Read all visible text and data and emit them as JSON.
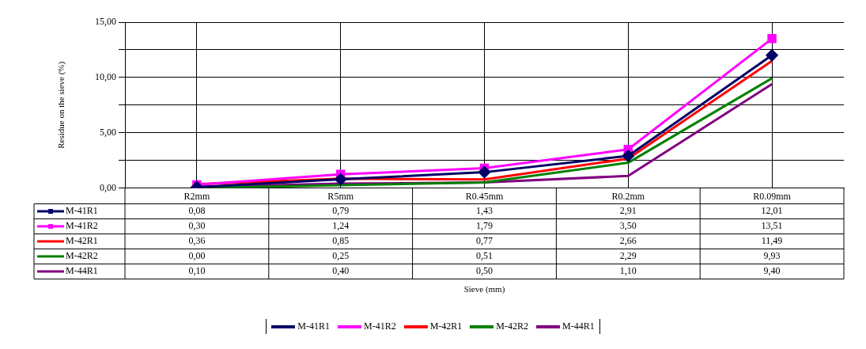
{
  "chart_data": {
    "type": "line",
    "annotations": [
      "Sieve (mm)"
    ],
    "ylabel": "Residue on the sieve (%)",
    "categories": [
      "R2mm",
      "R5mm",
      "R0.45mm",
      "R0.2mm",
      "R0.09mm"
    ],
    "ylim": [
      0,
      15
    ],
    "yticks": [
      {
        "value": 0,
        "label": "0,00"
      },
      {
        "value": 2.5,
        "label": null
      },
      {
        "value": 5,
        "label": "5,00"
      },
      {
        "value": 7.5,
        "label": null
      },
      {
        "value": 10,
        "label": "10,00"
      },
      {
        "value": 12.5,
        "label": null
      },
      {
        "value": 15,
        "label": "15,00"
      }
    ],
    "grid": true,
    "legend": "bottom",
    "line_style": "solid",
    "series": [
      {
        "name": "M-41R1",
        "color": "#000066",
        "marker": "diamond",
        "values": [
          0.08,
          0.79,
          1.43,
          2.91,
          12.01
        ],
        "value_labels": [
          "0,08",
          "0,79",
          "1,43",
          "2,91",
          "12,01"
        ]
      },
      {
        "name": "M-41R2",
        "color": "#ff00ff",
        "marker": "square",
        "values": [
          0.3,
          1.24,
          1.79,
          3.5,
          13.51
        ],
        "value_labels": [
          "0,30",
          "1,24",
          "1,79",
          "3,50",
          "13,51"
        ]
      },
      {
        "name": "M-42R1",
        "color": "#ff0000",
        "marker": "none",
        "values": [
          0.36,
          0.85,
          0.77,
          2.66,
          11.49
        ],
        "value_labels": [
          "0,36",
          "0,85",
          "0,77",
          "2,66",
          "11,49"
        ]
      },
      {
        "name": "M-42R2",
        "color": "#008000",
        "marker": "none",
        "values": [
          0.0,
          0.25,
          0.51,
          2.29,
          9.93
        ],
        "value_labels": [
          "0,00",
          "0,25",
          "0,51",
          "2,29",
          "9,93"
        ]
      },
      {
        "name": "M-44R1",
        "color": "#800080",
        "marker": "none",
        "values": [
          0.1,
          0.4,
          0.5,
          1.1,
          9.4
        ],
        "value_labels": [
          "0,10",
          "0,40",
          "0,50",
          "1,10",
          "9,40"
        ]
      }
    ]
  }
}
